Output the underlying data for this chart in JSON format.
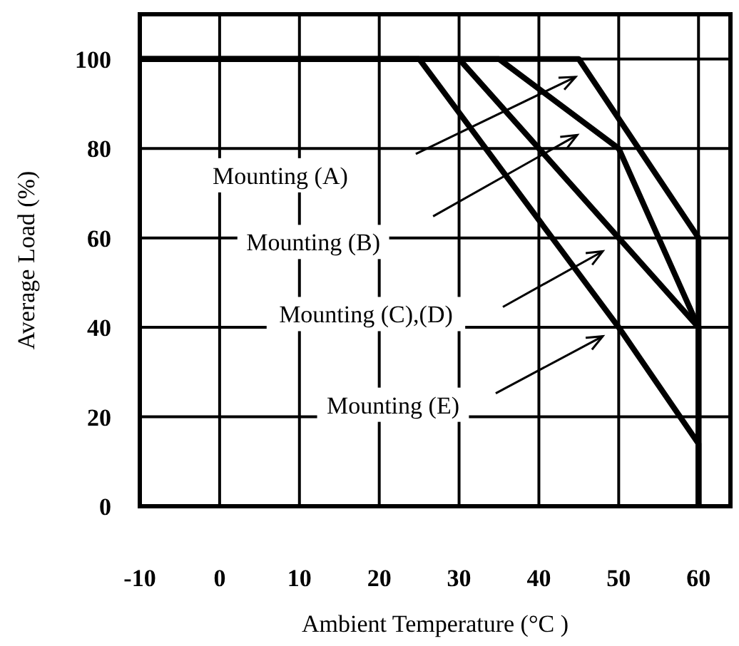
{
  "chart_data": {
    "type": "line",
    "xlabel": "Ambient Temperature (°C )",
    "ylabel": "Average Load (%)",
    "xlim": [
      -10,
      64
    ],
    "ylim": [
      0,
      110
    ],
    "xticks": [
      -10,
      0,
      10,
      20,
      30,
      40,
      50,
      60
    ],
    "yticks": [
      0,
      20,
      40,
      60,
      80,
      100
    ],
    "grid": true,
    "marker": "none",
    "line_style": "solid",
    "series": [
      {
        "color": "#000000",
        "x": [
          -10,
          45,
          60,
          60
        ],
        "values": [
          100,
          100,
          60,
          0
        ]
      },
      {
        "color": "#000000",
        "x": [
          -10,
          35,
          50,
          60,
          60
        ],
        "values": [
          100,
          100,
          80,
          40,
          0
        ]
      },
      {
        "color": "#000000",
        "x": [
          -10,
          30,
          60,
          60
        ],
        "values": [
          100,
          100,
          40,
          0
        ]
      },
      {
        "color": "#000000",
        "x": [
          -10,
          25,
          50,
          60,
          60
        ],
        "values": [
          100,
          100,
          40,
          14,
          0
        ]
      }
    ],
    "annotations": [
      "Mounting (A)",
      "Mounting (B)",
      "Mounting (C),(D)",
      "Mounting (E)"
    ]
  }
}
